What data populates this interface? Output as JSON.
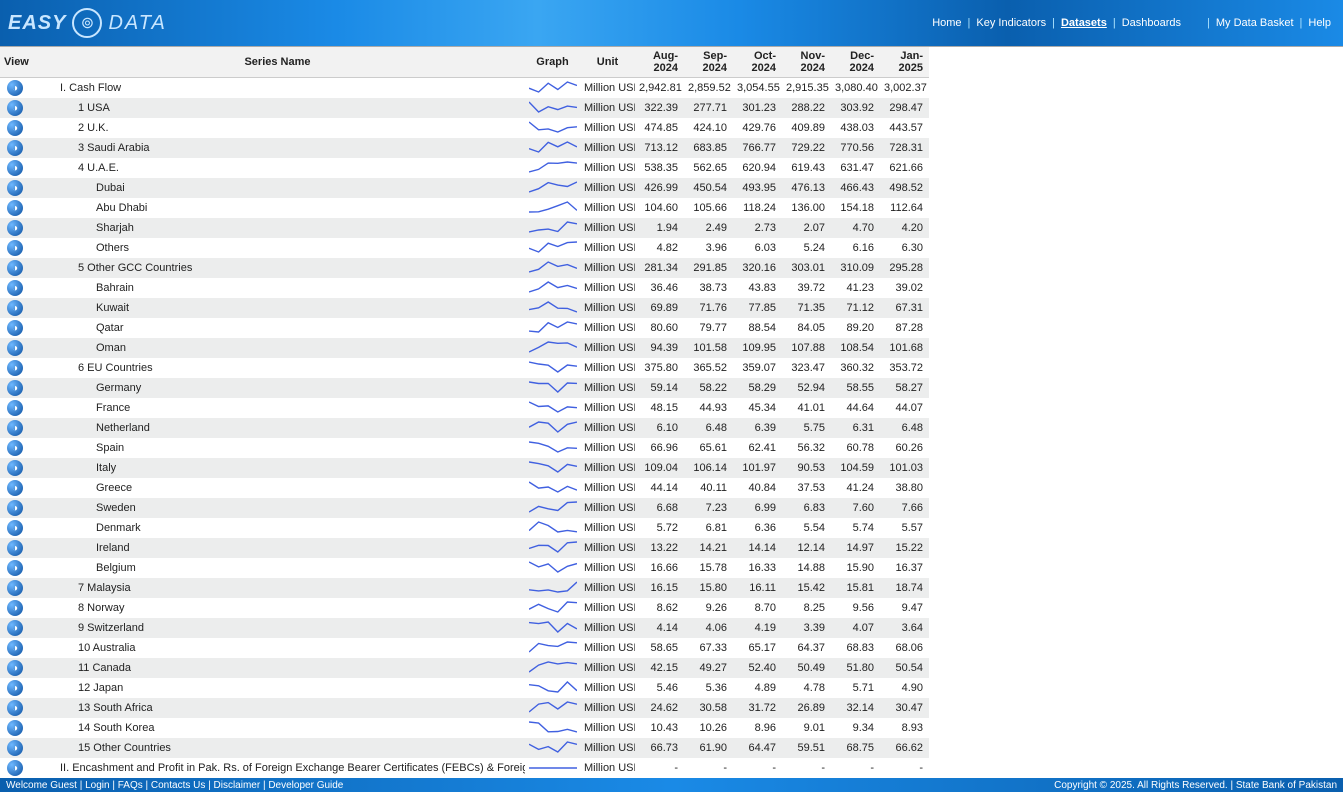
{
  "brand": {
    "easy": "EASY",
    "data": "DATA",
    "icon": "⊚"
  },
  "nav": {
    "home": "Home",
    "key_indicators": "Key Indicators",
    "datasets": "Datasets",
    "dashboards": "Dashboards",
    "my_basket": "My Data Basket",
    "help": "Help"
  },
  "columns": {
    "view": "View",
    "series": "Series Name",
    "graph": "Graph",
    "unit": "Unit",
    "m1": "Aug-2024",
    "m2": "Sep-2024",
    "m3": "Oct-2024",
    "m4": "Nov-2024",
    "m5": "Dec-2024",
    "m6": "Jan-2025"
  },
  "unit_label": "Million USD",
  "rows": [
    {
      "indent": 0,
      "name": "I. Cash Flow",
      "v": [
        "2,942.81",
        "2,859.52",
        "3,054.55",
        "2,915.35",
        "3,080.40",
        "3,002.37"
      ]
    },
    {
      "indent": 1,
      "name": "1 USA",
      "v": [
        "322.39",
        "277.71",
        "301.23",
        "288.22",
        "303.92",
        "298.47"
      ]
    },
    {
      "indent": 1,
      "name": "2 U.K.",
      "v": [
        "474.85",
        "424.10",
        "429.76",
        "409.89",
        "438.03",
        "443.57"
      ]
    },
    {
      "indent": 1,
      "name": "3 Saudi Arabia",
      "v": [
        "713.12",
        "683.85",
        "766.77",
        "729.22",
        "770.56",
        "728.31"
      ]
    },
    {
      "indent": 1,
      "name": "4 U.A.E.",
      "v": [
        "538.35",
        "562.65",
        "620.94",
        "619.43",
        "631.47",
        "621.66"
      ]
    },
    {
      "indent": 2,
      "name": "Dubai",
      "v": [
        "426.99",
        "450.54",
        "493.95",
        "476.13",
        "466.43",
        "498.52"
      ]
    },
    {
      "indent": 2,
      "name": "Abu Dhabi",
      "v": [
        "104.60",
        "105.66",
        "118.24",
        "136.00",
        "154.18",
        "112.64"
      ]
    },
    {
      "indent": 2,
      "name": "Sharjah",
      "v": [
        "1.94",
        "2.49",
        "2.73",
        "2.07",
        "4.70",
        "4.20"
      ]
    },
    {
      "indent": 2,
      "name": "Others",
      "v": [
        "4.82",
        "3.96",
        "6.03",
        "5.24",
        "6.16",
        "6.30"
      ]
    },
    {
      "indent": 1,
      "name": "5 Other GCC Countries",
      "v": [
        "281.34",
        "291.85",
        "320.16",
        "303.01",
        "310.09",
        "295.28"
      ]
    },
    {
      "indent": 2,
      "name": "Bahrain",
      "v": [
        "36.46",
        "38.73",
        "43.83",
        "39.72",
        "41.23",
        "39.02"
      ]
    },
    {
      "indent": 2,
      "name": "Kuwait",
      "v": [
        "69.89",
        "71.76",
        "77.85",
        "71.35",
        "71.12",
        "67.31"
      ]
    },
    {
      "indent": 2,
      "name": "Qatar",
      "v": [
        "80.60",
        "79.77",
        "88.54",
        "84.05",
        "89.20",
        "87.28"
      ]
    },
    {
      "indent": 2,
      "name": "Oman",
      "v": [
        "94.39",
        "101.58",
        "109.95",
        "107.88",
        "108.54",
        "101.68"
      ]
    },
    {
      "indent": 1,
      "name": "6 EU Countries",
      "v": [
        "375.80",
        "365.52",
        "359.07",
        "323.47",
        "360.32",
        "353.72"
      ]
    },
    {
      "indent": 2,
      "name": "Germany",
      "v": [
        "59.14",
        "58.22",
        "58.29",
        "52.94",
        "58.55",
        "58.27"
      ]
    },
    {
      "indent": 2,
      "name": "France",
      "v": [
        "48.15",
        "44.93",
        "45.34",
        "41.01",
        "44.64",
        "44.07"
      ]
    },
    {
      "indent": 2,
      "name": "Netherland",
      "v": [
        "6.10",
        "6.48",
        "6.39",
        "5.75",
        "6.31",
        "6.48"
      ]
    },
    {
      "indent": 2,
      "name": "Spain",
      "v": [
        "66.96",
        "65.61",
        "62.41",
        "56.32",
        "60.78",
        "60.26"
      ]
    },
    {
      "indent": 2,
      "name": "Italy",
      "v": [
        "109.04",
        "106.14",
        "101.97",
        "90.53",
        "104.59",
        "101.03"
      ]
    },
    {
      "indent": 2,
      "name": "Greece",
      "v": [
        "44.14",
        "40.11",
        "40.84",
        "37.53",
        "41.24",
        "38.80"
      ]
    },
    {
      "indent": 2,
      "name": "Sweden",
      "v": [
        "6.68",
        "7.23",
        "6.99",
        "6.83",
        "7.60",
        "7.66"
      ]
    },
    {
      "indent": 2,
      "name": "Denmark",
      "v": [
        "5.72",
        "6.81",
        "6.36",
        "5.54",
        "5.74",
        "5.57"
      ]
    },
    {
      "indent": 2,
      "name": "Ireland",
      "v": [
        "13.22",
        "14.21",
        "14.14",
        "12.14",
        "14.97",
        "15.22"
      ]
    },
    {
      "indent": 2,
      "name": "Belgium",
      "v": [
        "16.66",
        "15.78",
        "16.33",
        "14.88",
        "15.90",
        "16.37"
      ]
    },
    {
      "indent": 1,
      "name": "7 Malaysia",
      "v": [
        "16.15",
        "15.80",
        "16.11",
        "15.42",
        "15.81",
        "18.74"
      ]
    },
    {
      "indent": 1,
      "name": "8 Norway",
      "v": [
        "8.62",
        "9.26",
        "8.70",
        "8.25",
        "9.56",
        "9.47"
      ]
    },
    {
      "indent": 1,
      "name": "9 Switzerland",
      "v": [
        "4.14",
        "4.06",
        "4.19",
        "3.39",
        "4.07",
        "3.64"
      ]
    },
    {
      "indent": 1,
      "name": "10 Australia",
      "v": [
        "58.65",
        "67.33",
        "65.17",
        "64.37",
        "68.83",
        "68.06"
      ]
    },
    {
      "indent": 1,
      "name": "11 Canada",
      "v": [
        "42.15",
        "49.27",
        "52.40",
        "50.49",
        "51.80",
        "50.54"
      ]
    },
    {
      "indent": 1,
      "name": "12 Japan",
      "v": [
        "5.46",
        "5.36",
        "4.89",
        "4.78",
        "5.71",
        "4.90"
      ]
    },
    {
      "indent": 1,
      "name": "13 South Africa",
      "v": [
        "24.62",
        "30.58",
        "31.72",
        "26.89",
        "32.14",
        "30.47"
      ]
    },
    {
      "indent": 1,
      "name": "14 South Korea",
      "v": [
        "10.43",
        "10.26",
        "8.96",
        "9.01",
        "9.34",
        "8.93"
      ]
    },
    {
      "indent": 1,
      "name": "15 Other Countries",
      "v": [
        "66.73",
        "61.90",
        "64.47",
        "59.51",
        "68.75",
        "66.62"
      ]
    },
    {
      "indent": 0,
      "name": "II. Encashment and Profit in Pak. Rs. of Foreign Exchange Bearer Certificates (FEBCs) & Foreign Currency Bearer Certificates (FCBCs)",
      "v": [
        "-",
        "-",
        "-",
        "-",
        "-",
        "-"
      ]
    }
  ],
  "spark_style": {
    "stroke": "#4060e0",
    "width": 1.4
  },
  "footer": {
    "left": "Welcome Guest | Login | FAQs | Contacts Us | Disclaimer | Developer Guide",
    "right": "Copyright © 2025. All Rights Reserved. | State Bank of Pakistan"
  }
}
